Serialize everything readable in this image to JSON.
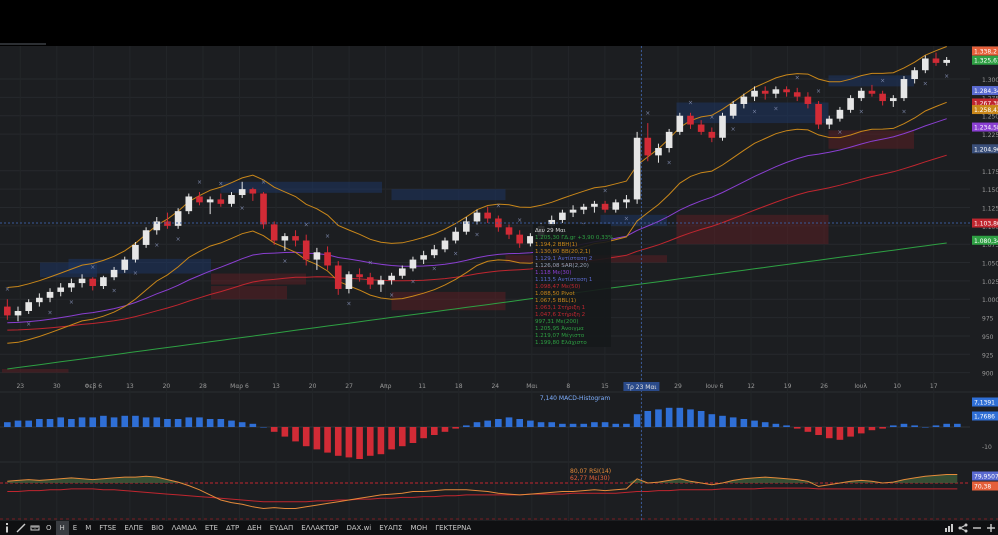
{
  "chart_data": {
    "type": "candlestick",
    "x_ticks": [
      "23",
      "30",
      "Φεβ 6",
      "13",
      "20",
      "28",
      "Μαρ 6",
      "13",
      "20",
      "27",
      "Απρ",
      "11",
      "18",
      "24",
      "Μαι",
      "8",
      "15",
      "Τρ 23 Μαι",
      "29",
      "Ιουν 6",
      "12",
      "19",
      "26",
      "Ιουλ",
      "10",
      "17"
    ],
    "y_ticks": [
      "1.300",
      "1.275",
      "1.250",
      "1.225",
      "1.175",
      "1.150",
      "1.125",
      "1.100",
      "1.075",
      "1.050",
      "1.025",
      "1.000",
      "975",
      "950",
      "925",
      "900"
    ],
    "ylim": [
      875,
      1345
    ],
    "price_labels": [
      {
        "text": "1.338,2",
        "color": "#e5603a",
        "v": 1338.2
      },
      {
        "text": "1.325,61",
        "color": "#2ea043",
        "v": 1325.61
      },
      {
        "text": "1.284,34",
        "color": "#5a6ad0",
        "v": 1284.34
      },
      {
        "text": "1.267,38",
        "color": "#c0262f",
        "v": 1267.38
      },
      {
        "text": "1.258,43",
        "color": "#c9871a",
        "v": 1258.43
      },
      {
        "text": "1.234,58",
        "color": "#8a3fd1",
        "v": 1234.58
      },
      {
        "text": "1.204,96",
        "color": "#3a4f7a",
        "v": 1204.96
      },
      {
        "text": "1.103,80",
        "color": "#c0262f",
        "v": 1103.8
      },
      {
        "text": "1.080,34",
        "color": "#2ea043",
        "v": 1080.34
      }
    ],
    "crosshair_x_label": "Τρ 23 Μαι",
    "crosshair_y_value": 1103.8,
    "candles": [
      [
        990,
        1000,
        972,
        978
      ],
      [
        978,
        990,
        970,
        984
      ],
      [
        984,
        1000,
        980,
        996
      ],
      [
        996,
        1008,
        990,
        1002
      ],
      [
        1002,
        1015,
        996,
        1010
      ],
      [
        1010,
        1022,
        1004,
        1016
      ],
      [
        1016,
        1028,
        1010,
        1022
      ],
      [
        1022,
        1034,
        1016,
        1028
      ],
      [
        1028,
        1030,
        1012,
        1018
      ],
      [
        1018,
        1032,
        1014,
        1030
      ],
      [
        1030,
        1044,
        1026,
        1040
      ],
      [
        1040,
        1058,
        1036,
        1054
      ],
      [
        1054,
        1078,
        1050,
        1074
      ],
      [
        1074,
        1098,
        1070,
        1094
      ],
      [
        1094,
        1112,
        1088,
        1106
      ],
      [
        1106,
        1118,
        1096,
        1100
      ],
      [
        1100,
        1124,
        1096,
        1120
      ],
      [
        1120,
        1144,
        1116,
        1140
      ],
      [
        1140,
        1146,
        1128,
        1132
      ],
      [
        1132,
        1140,
        1116,
        1136
      ],
      [
        1136,
        1144,
        1126,
        1130
      ],
      [
        1130,
        1146,
        1126,
        1142
      ],
      [
        1142,
        1160,
        1138,
        1150
      ],
      [
        1150,
        1152,
        1134,
        1144
      ],
      [
        1144,
        1146,
        1096,
        1102
      ],
      [
        1102,
        1106,
        1074,
        1080
      ],
      [
        1080,
        1090,
        1066,
        1086
      ],
      [
        1086,
        1094,
        1072,
        1080
      ],
      [
        1080,
        1088,
        1046,
        1054
      ],
      [
        1054,
        1070,
        1040,
        1064
      ],
      [
        1064,
        1072,
        1040,
        1046
      ],
      [
        1046,
        1052,
        1006,
        1014
      ],
      [
        1014,
        1038,
        1008,
        1034
      ],
      [
        1034,
        1042,
        1024,
        1030
      ],
      [
        1030,
        1036,
        1014,
        1020
      ],
      [
        1020,
        1032,
        1010,
        1026
      ],
      [
        1026,
        1036,
        1020,
        1032
      ],
      [
        1032,
        1046,
        1028,
        1042
      ],
      [
        1042,
        1058,
        1038,
        1054
      ],
      [
        1054,
        1066,
        1048,
        1060
      ],
      [
        1060,
        1074,
        1056,
        1068
      ],
      [
        1068,
        1084,
        1064,
        1080
      ],
      [
        1080,
        1098,
        1076,
        1092
      ],
      [
        1092,
        1112,
        1088,
        1106
      ],
      [
        1106,
        1122,
        1102,
        1118
      ],
      [
        1118,
        1126,
        1104,
        1110
      ],
      [
        1110,
        1114,
        1092,
        1098
      ],
      [
        1098,
        1102,
        1082,
        1088
      ],
      [
        1088,
        1094,
        1070,
        1076
      ],
      [
        1076,
        1090,
        1072,
        1086
      ],
      [
        1086,
        1104,
        1082,
        1100
      ],
      [
        1100,
        1114,
        1096,
        1108
      ],
      [
        1108,
        1122,
        1104,
        1118
      ],
      [
        1118,
        1128,
        1112,
        1122
      ],
      [
        1122,
        1130,
        1116,
        1126
      ],
      [
        1126,
        1134,
        1118,
        1130
      ],
      [
        1130,
        1134,
        1118,
        1122
      ],
      [
        1122,
        1136,
        1118,
        1132
      ],
      [
        1132,
        1142,
        1124,
        1136
      ],
      [
        1136,
        1228,
        1130,
        1220
      ],
      [
        1220,
        1240,
        1188,
        1196
      ],
      [
        1196,
        1212,
        1186,
        1206
      ],
      [
        1206,
        1232,
        1200,
        1228
      ],
      [
        1228,
        1254,
        1224,
        1250
      ],
      [
        1250,
        1254,
        1232,
        1238
      ],
      [
        1238,
        1244,
        1224,
        1228
      ],
      [
        1228,
        1234,
        1214,
        1220
      ],
      [
        1220,
        1254,
        1216,
        1250
      ],
      [
        1250,
        1270,
        1246,
        1266
      ],
      [
        1266,
        1280,
        1260,
        1276
      ],
      [
        1276,
        1290,
        1270,
        1284
      ],
      [
        1284,
        1290,
        1272,
        1280
      ],
      [
        1280,
        1290,
        1274,
        1286
      ],
      [
        1286,
        1290,
        1276,
        1282
      ],
      [
        1282,
        1288,
        1270,
        1276
      ],
      [
        1276,
        1282,
        1260,
        1266
      ],
      [
        1266,
        1270,
        1232,
        1238
      ],
      [
        1238,
        1250,
        1232,
        1246
      ],
      [
        1246,
        1262,
        1242,
        1258
      ],
      [
        1258,
        1278,
        1254,
        1274
      ],
      [
        1274,
        1288,
        1270,
        1284
      ],
      [
        1284,
        1292,
        1276,
        1280
      ],
      [
        1280,
        1284,
        1264,
        1270
      ],
      [
        1270,
        1278,
        1262,
        1274
      ],
      [
        1274,
        1304,
        1270,
        1300
      ],
      [
        1300,
        1316,
        1294,
        1312
      ],
      [
        1312,
        1332,
        1308,
        1328
      ],
      [
        1328,
        1336,
        1318,
        1322
      ],
      [
        1322,
        1330,
        1318,
        1326
      ]
    ],
    "info_panel": [
      {
        "text": "Δευ 29 Μαι",
        "color": "#dcdcdc"
      },
      {
        "text": "1.205,30 ΓΔ.gr +3,90 0,33%",
        "color": "#2ea043"
      },
      {
        "text": "1.194,2 BBH(1)",
        "color": "#c9871a"
      },
      {
        "text": "1.130,80 BB(20,2,1)",
        "color": "#c9871a"
      },
      {
        "text": "1.129,1 Αντίσταση 2",
        "color": "#5a6ad0"
      },
      {
        "text": "1.126,08 SAR(2,20)",
        "color": "#9aa4b8"
      },
      {
        "text": "1.118 Με(30)",
        "color": "#8a3fd1"
      },
      {
        "text": "1.113,5 Αντίσταση 1",
        "color": "#5a6ad0"
      },
      {
        "text": "1.098,47 Με(50)",
        "color": "#c0262f"
      },
      {
        "text": "1.088,50 Pivot",
        "color": "#c9871a"
      },
      {
        "text": "1.067,5 BBL(1)",
        "color": "#c9871a"
      },
      {
        "text": "1.063,1 Στήριξη 1",
        "color": "#c0262f"
      },
      {
        "text": "1.047,6 Στήριξη 2",
        "color": "#c0262f"
      },
      {
        "text": "997,31 Με(200)",
        "color": "#2ea043"
      },
      {
        "text": "1.205,95 Άνοιγμα",
        "color": "#2ea043"
      },
      {
        "text": "1.219,07 Μέγιστο",
        "color": "#2ea043"
      },
      {
        "text": "1.199,80 Ελάχιστο",
        "color": "#2ea043"
      }
    ],
    "macd": {
      "label": "7,140 MACD-Histogram",
      "y_ticks": [
        "-10"
      ],
      "price_labels": [
        {
          "text": "7,1391",
          "color": "#2f6fd6"
        },
        {
          "text": "1,7686",
          "color": "#2f6fd6"
        }
      ],
      "values": [
        3,
        4,
        4,
        5,
        5,
        6,
        5,
        6,
        6,
        7,
        6,
        7,
        7,
        6,
        6,
        5,
        5,
        6,
        6,
        5,
        5,
        4,
        3,
        2,
        0,
        -3,
        -6,
        -9,
        -12,
        -14,
        -16,
        -18,
        -19,
        -20,
        -18,
        -17,
        -14,
        -12,
        -10,
        -7,
        -5,
        -3,
        -1,
        1,
        3,
        4,
        5,
        6,
        5,
        4,
        3,
        3,
        2,
        2,
        2,
        3,
        3,
        2,
        2,
        8,
        10,
        11,
        12,
        12,
        11,
        10,
        8,
        7,
        6,
        5,
        4,
        3,
        2,
        1,
        -1,
        -3,
        -5,
        -7,
        -8,
        -6,
        -4,
        -2,
        -1,
        1,
        2,
        1,
        0,
        1,
        2,
        2
      ]
    },
    "rsi": {
      "label_rsi": "80,07 RSI(14)",
      "label_ma": "62,77 Με(30)",
      "y_ticks": [
        "70"
      ],
      "price_labels": [
        {
          "text": "79,9507",
          "color": "#5a6ad0"
        },
        {
          "text": "70,38",
          "color": "#e5603a"
        }
      ],
      "rsi_values": [
        72,
        73,
        74,
        73,
        74,
        75,
        76,
        75,
        74,
        75,
        76,
        77,
        77,
        78,
        77,
        74,
        71,
        67,
        62,
        56,
        50,
        47,
        45,
        42,
        40,
        41,
        40,
        40,
        42,
        44,
        46,
        48,
        50,
        52,
        54,
        56,
        57,
        58,
        60,
        60,
        61,
        62,
        62,
        62,
        61,
        60,
        58,
        57,
        56,
        57,
        58,
        59,
        60,
        60,
        61,
        62,
        61,
        62,
        63,
        75,
        70,
        71,
        73,
        75,
        72,
        70,
        68,
        70,
        73,
        75,
        76,
        77,
        76,
        75,
        74,
        72,
        66,
        68,
        70,
        72,
        73,
        72,
        70,
        71,
        74,
        76,
        78,
        79,
        80,
        80
      ],
      "ma_values": [
        60,
        60,
        61,
        61,
        62,
        62,
        63,
        63,
        63,
        62,
        62,
        61,
        60,
        59,
        58,
        57,
        56,
        55,
        54,
        53,
        52,
        51,
        50,
        49,
        48,
        48,
        48,
        48,
        48,
        49,
        49,
        50,
        50,
        51,
        51,
        52,
        52,
        53,
        53,
        54,
        54,
        55,
        55,
        56,
        56,
        56,
        56,
        56,
        56,
        57,
        57,
        57,
        57,
        58,
        58,
        58,
        58,
        58,
        59,
        60,
        60,
        61,
        61,
        62,
        62,
        62,
        62,
        63,
        63,
        63,
        63,
        64,
        64,
        64,
        64,
        64,
        63,
        63,
        63,
        63,
        63,
        63,
        63,
        63,
        63,
        63,
        63,
        63,
        63,
        63
      ]
    }
  },
  "toolbar": {
    "items": [
      {
        "label": "Ο",
        "active": false
      },
      {
        "label": "Η",
        "active": true
      },
      {
        "label": "Ε",
        "active": false
      },
      {
        "label": "Μ",
        "active": false
      },
      {
        "label": "FTSE",
        "active": false
      },
      {
        "label": "ΕΛΠΕ",
        "active": false
      },
      {
        "label": "ΒΙΟ",
        "active": false
      },
      {
        "label": "ΛΑΜΔΑ",
        "active": false
      },
      {
        "label": "ΕΤΕ",
        "active": false
      },
      {
        "label": "ΔΤΡ",
        "active": false
      },
      {
        "label": "ΔΕΗ",
        "active": false
      },
      {
        "label": "ΕΥΔΑΠ",
        "active": false
      },
      {
        "label": "ΕΛΛΑΚΤΩΡ",
        "active": false
      },
      {
        "label": "DAX.wi",
        "active": false
      },
      {
        "label": "ΕΥΑΠΣ",
        "active": false
      },
      {
        "label": "ΜΟΗ",
        "active": false
      },
      {
        "label": "ΓΕΚΤΕΡΝΑ",
        "active": false
      }
    ]
  }
}
